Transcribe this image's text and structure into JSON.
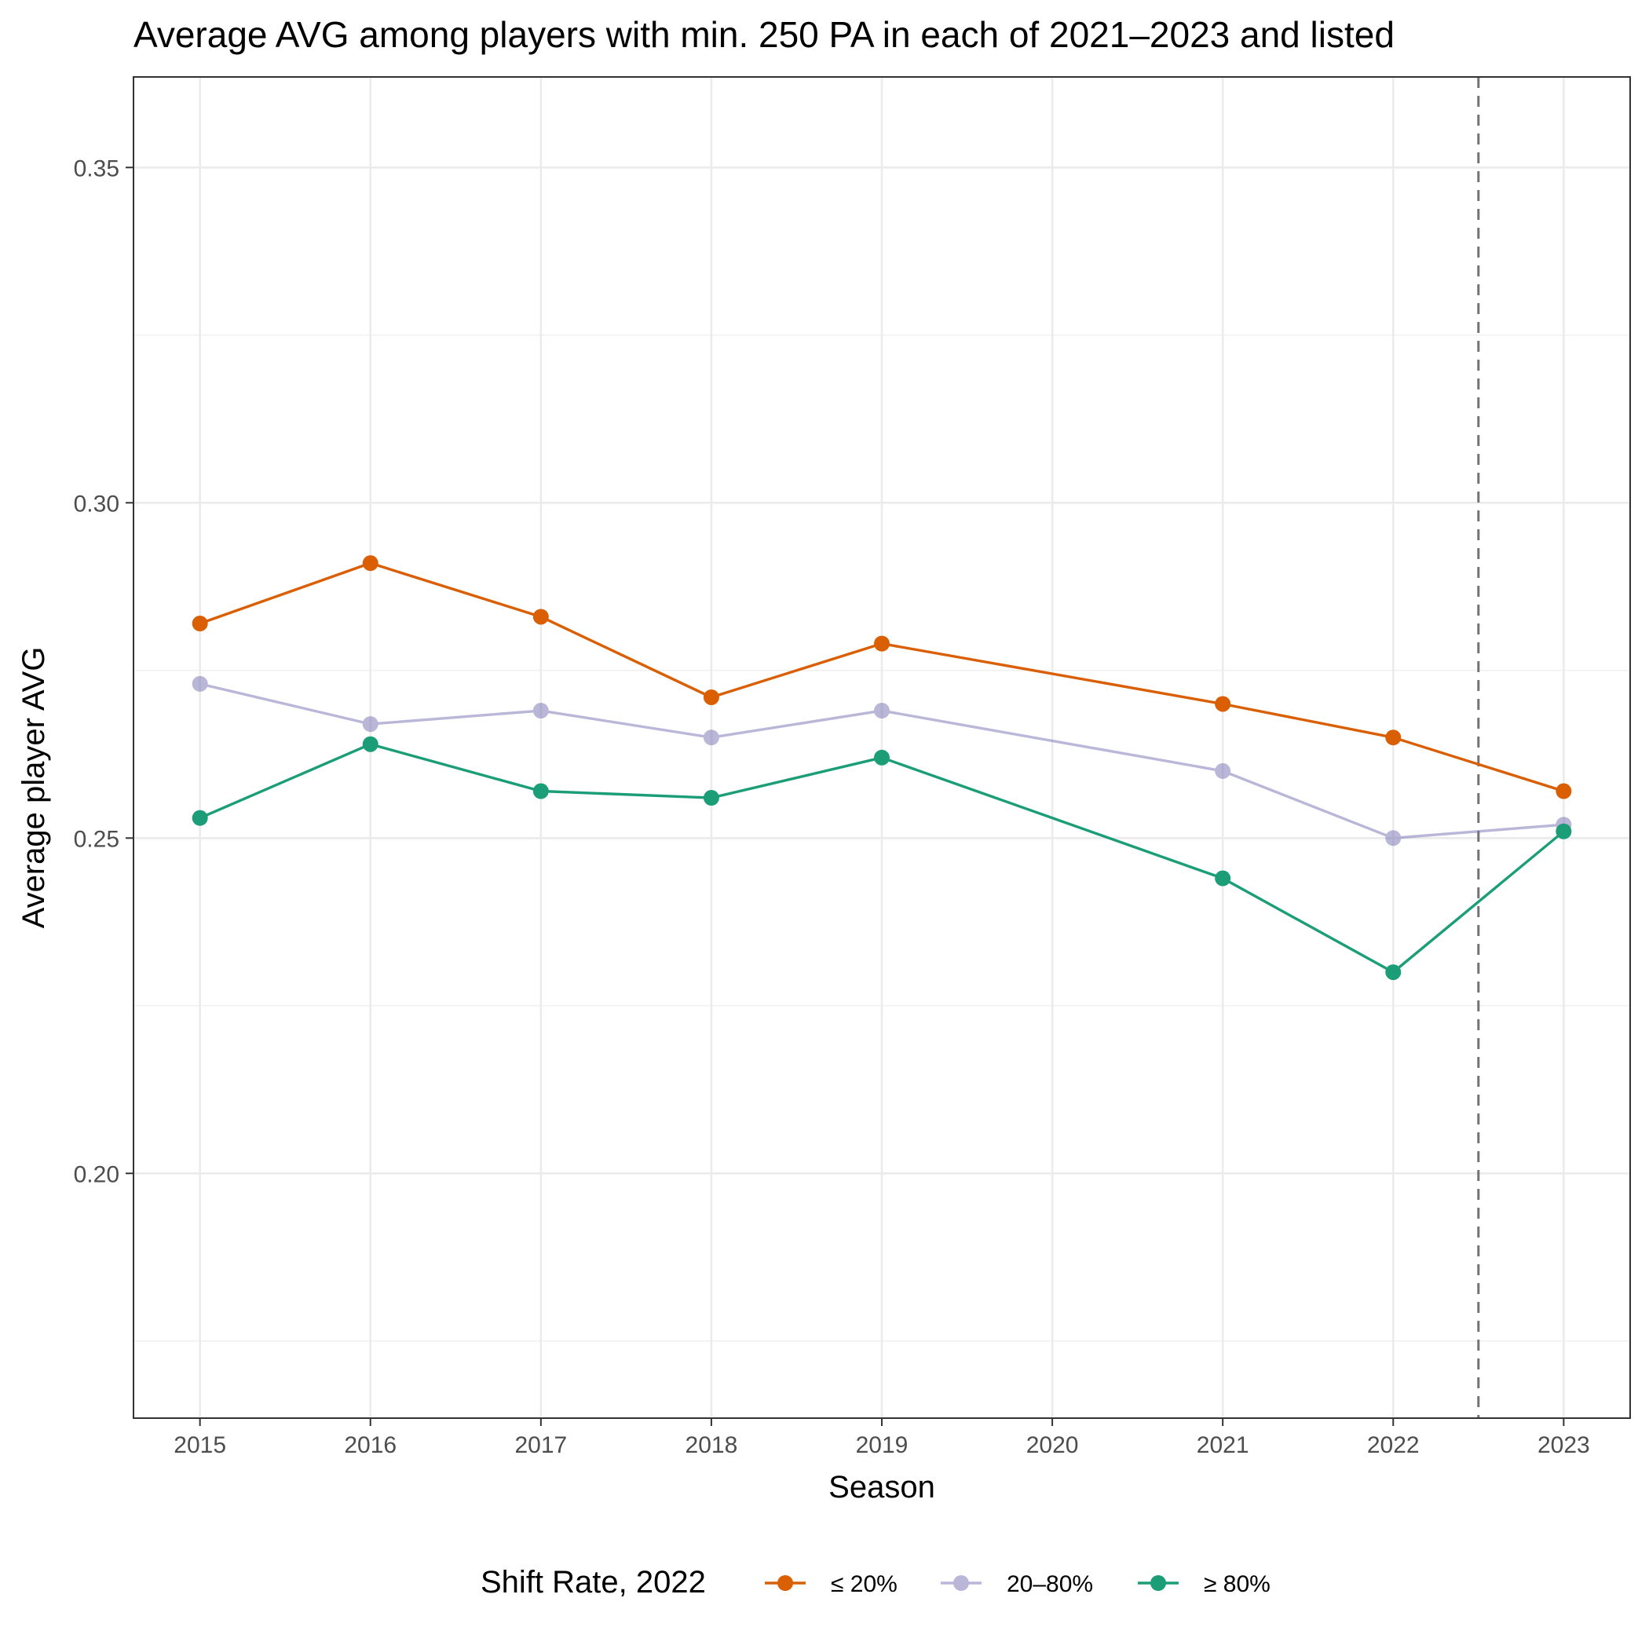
{
  "chart_data": {
    "type": "line",
    "title": "Average AVG among players with min. 250 PA in each of 2021–2023 and listed",
    "xlabel": "Season",
    "ylabel": "Average player AVG",
    "x": [
      2015,
      2016,
      2017,
      2018,
      2019,
      2021,
      2022,
      2023
    ],
    "x_ticks": [
      "2015",
      "2016",
      "2017",
      "2018",
      "2019",
      "2020",
      "2021",
      "2022",
      "2023"
    ],
    "y_ticks": [
      "0.20",
      "0.25",
      "0.30",
      "0.35"
    ],
    "xlim": [
      2014.61,
      2023.39
    ],
    "ylim": [
      0.1635,
      0.3635
    ],
    "grid": true,
    "reference_line": {
      "x": 2022.5,
      "style": "dashed",
      "color": "#737373"
    },
    "legend": {
      "title": "Shift Rate, 2022",
      "position": "bottom"
    },
    "series": [
      {
        "name": "≤ 20%",
        "color": "#d95f02",
        "alpha": 1.0,
        "values": [
          0.282,
          0.291,
          0.283,
          0.271,
          0.279,
          0.27,
          0.265,
          0.257
        ]
      },
      {
        "name": "20–80%",
        "color": "#7570b3",
        "alpha": 0.5,
        "values": [
          0.273,
          0.267,
          0.269,
          0.265,
          0.269,
          0.26,
          0.25,
          0.252
        ]
      },
      {
        "name": "≥ 80%",
        "color": "#1b9e77",
        "alpha": 1.0,
        "values": [
          0.253,
          0.264,
          0.257,
          0.256,
          0.262,
          0.244,
          0.23,
          0.251
        ]
      }
    ]
  }
}
